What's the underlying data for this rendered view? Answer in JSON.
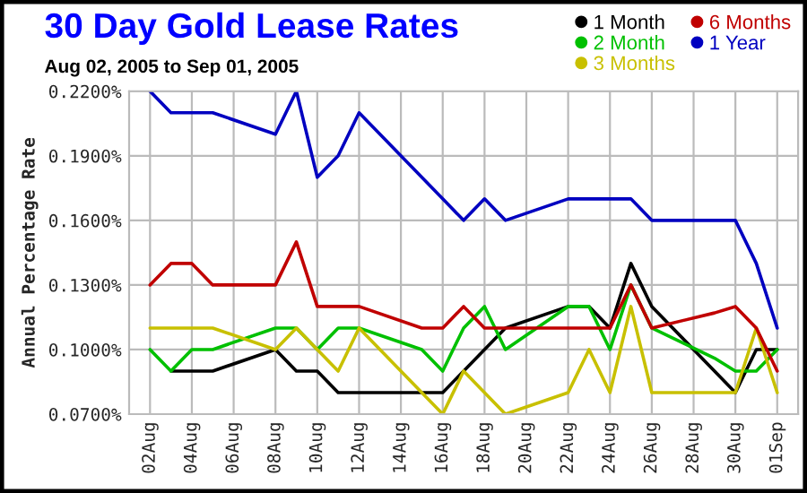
{
  "chart_data": {
    "type": "line",
    "title": "30 Day Gold Lease Rates",
    "subtitle": "Aug 02, 2005 to Sep 01, 2005",
    "ylabel": "Annual Percentage Rate",
    "x": [
      "2005-08-02",
      "2005-08-03",
      "2005-08-04",
      "2005-08-05",
      "2005-08-08",
      "2005-08-09",
      "2005-08-10",
      "2005-08-11",
      "2005-08-12",
      "2005-08-15",
      "2005-08-16",
      "2005-08-17",
      "2005-08-18",
      "2005-08-19",
      "2005-08-22",
      "2005-08-23",
      "2005-08-24",
      "2005-08-25",
      "2005-08-26",
      "2005-08-29",
      "2005-08-30",
      "2005-08-31",
      "2005-09-01"
    ],
    "series": [
      {
        "name": "1 Month",
        "color": "#000000",
        "values": [
          null,
          0.09,
          0.09,
          0.09,
          0.1,
          0.09,
          0.09,
          0.08,
          0.08,
          0.08,
          0.08,
          0.09,
          0.1,
          0.11,
          0.12,
          0.12,
          0.11,
          0.14,
          0.12,
          0.09,
          0.08,
          0.1,
          0.1
        ]
      },
      {
        "name": "2 Month",
        "color": "#00c000",
        "values": [
          0.1,
          0.09,
          0.1,
          0.1,
          0.11,
          0.11,
          0.1,
          0.11,
          0.11,
          0.1,
          0.09,
          0.11,
          0.12,
          0.1,
          0.12,
          0.12,
          0.1,
          0.13,
          0.11,
          0.096,
          0.09,
          0.09,
          0.1
        ]
      },
      {
        "name": "3 Months",
        "color": "#c8c000",
        "values": [
          0.11,
          0.11,
          0.11,
          0.11,
          0.1,
          0.11,
          0.1,
          0.09,
          0.11,
          0.08,
          0.07,
          0.09,
          0.08,
          0.07,
          0.08,
          0.1,
          0.08,
          0.12,
          0.08,
          0.08,
          0.08,
          0.11,
          0.08
        ]
      },
      {
        "name": "6 Months",
        "color": "#c00000",
        "values": [
          0.13,
          0.14,
          0.14,
          0.13,
          0.13,
          0.15,
          0.12,
          0.12,
          0.12,
          0.11,
          0.11,
          0.12,
          0.11,
          0.11,
          0.11,
          0.11,
          0.11,
          0.13,
          0.11,
          0.117,
          0.12,
          0.11,
          0.09
        ]
      },
      {
        "name": "1 Year",
        "color": "#0000c0",
        "values": [
          0.22,
          0.21,
          0.21,
          0.21,
          0.2,
          0.22,
          0.18,
          0.19,
          0.21,
          0.18,
          0.17,
          0.16,
          0.17,
          0.16,
          0.17,
          0.17,
          0.17,
          0.17,
          0.16,
          0.16,
          0.16,
          0.14,
          0.11
        ]
      }
    ],
    "xlim": [
      "2005-08-01",
      "2005-09-02"
    ],
    "xticks": [
      {
        "value": "2005-08-02",
        "label": "02Aug"
      },
      {
        "value": "2005-08-04",
        "label": "04Aug"
      },
      {
        "value": "2005-08-06",
        "label": "06Aug"
      },
      {
        "value": "2005-08-08",
        "label": "08Aug"
      },
      {
        "value": "2005-08-10",
        "label": "10Aug"
      },
      {
        "value": "2005-08-12",
        "label": "12Aug"
      },
      {
        "value": "2005-08-14",
        "label": "14Aug"
      },
      {
        "value": "2005-08-16",
        "label": "16Aug"
      },
      {
        "value": "2005-08-18",
        "label": "18Aug"
      },
      {
        "value": "2005-08-20",
        "label": "20Aug"
      },
      {
        "value": "2005-08-22",
        "label": "22Aug"
      },
      {
        "value": "2005-08-24",
        "label": "24Aug"
      },
      {
        "value": "2005-08-26",
        "label": "26Aug"
      },
      {
        "value": "2005-08-28",
        "label": "28Aug"
      },
      {
        "value": "2005-08-30",
        "label": "30Aug"
      },
      {
        "value": "2005-09-01",
        "label": "01Sep"
      }
    ],
    "ylim": [
      0.07,
      0.22
    ],
    "yticks": [
      {
        "value": 0.07,
        "label": "0.0700%"
      },
      {
        "value": 0.1,
        "label": "0.1000%"
      },
      {
        "value": 0.13,
        "label": "0.1300%"
      },
      {
        "value": 0.16,
        "label": "0.1600%"
      },
      {
        "value": 0.19,
        "label": "0.1900%"
      },
      {
        "value": 0.22,
        "label": "0.2200%"
      }
    ],
    "grid": true,
    "legend": "top right"
  }
}
